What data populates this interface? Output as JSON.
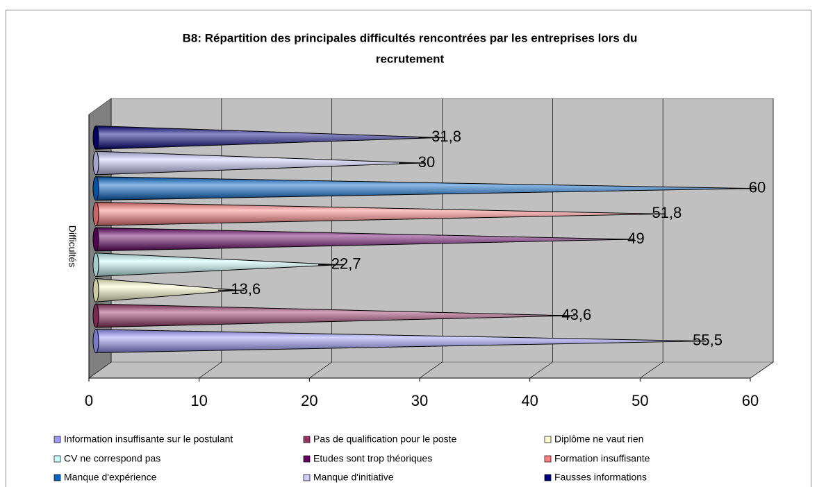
{
  "chart_data": {
    "type": "cone-bar",
    "title": "B8: Répartition des principales difficultés rencontrées par les entreprises lors du recrutement",
    "title_lines": [
      "B8: Répartition des principales difficultés rencontrées par les entreprises lors du",
      "recrutement"
    ],
    "y_label": "Difficultés",
    "series": [
      {
        "name": "Information insuffisante sur le postulant",
        "color": "#9999ff",
        "values": [
          55.5
        ],
        "value_labels": [
          "55,5"
        ]
      },
      {
        "name": "Pas de qualification pour le poste",
        "color": "#993366",
        "values": [
          43.6
        ],
        "value_labels": [
          "43,6"
        ]
      },
      {
        "name": "Diplôme ne vaut rien",
        "color": "#ffffcc",
        "values": [
          13.6
        ],
        "value_labels": [
          "13,6"
        ]
      },
      {
        "name": "CV ne correspond pas",
        "color": "#ccffff",
        "values": [
          22.7
        ],
        "value_labels": [
          "22,7"
        ]
      },
      {
        "name": "Etudes sont trop théoriques",
        "color": "#660066",
        "values": [
          49
        ],
        "value_labels": [
          "49"
        ]
      },
      {
        "name": "Formation insuffisante",
        "color": "#ff8080",
        "values": [
          51.8
        ],
        "value_labels": [
          "51,8"
        ]
      },
      {
        "name": "Manque d'expérience",
        "color": "#0066cc",
        "values": [
          60
        ],
        "value_labels": [
          "60"
        ]
      },
      {
        "name": "Manque d'initiative",
        "color": "#ccccff",
        "values": [
          30
        ],
        "value_labels": [
          "30"
        ]
      },
      {
        "name": "Fausses informations",
        "color": "#000080",
        "values": [
          31.8
        ],
        "value_labels": [
          "31,8"
        ]
      }
    ],
    "xlim": [
      0,
      60
    ],
    "xticks": [
      0,
      10,
      20,
      30,
      40,
      50,
      60
    ],
    "grid": true,
    "legend": "bottom"
  }
}
